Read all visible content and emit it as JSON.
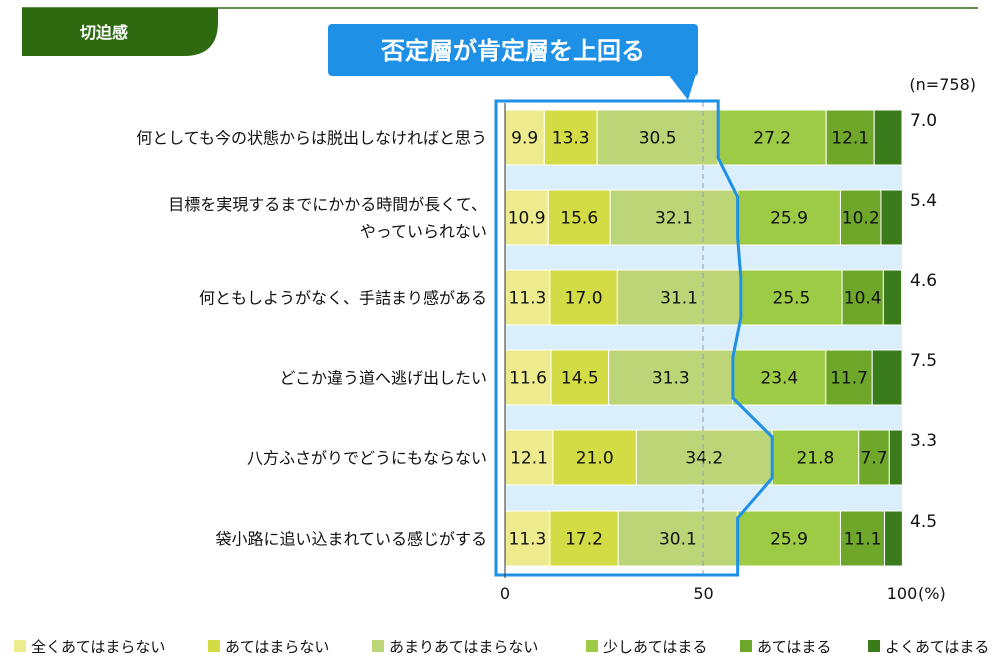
{
  "header": {
    "tab_label": "切迫感",
    "callout": "否定層が肯定層を上回る",
    "sample_size": "(n=758)",
    "unit": "(%)"
  },
  "colors": {
    "tab": "#2e6b10",
    "callout": "#1e90e6",
    "outline": "#1e90e6",
    "band": "#dbeefb",
    "segments": [
      "#eeeb8e",
      "#d3dc45",
      "#bcd577",
      "#9ecb45",
      "#6ea72a",
      "#3a7b1c"
    ]
  },
  "chart_data": {
    "type": "bar",
    "orientation": "horizontal",
    "stacked": true,
    "categories": [
      "何としても今の状態からは脱出しなければと思う",
      "目標を実現するまでにかかる時間が長くて、やっていられない",
      "何ともしようがなく、手詰まり感がある",
      "どこか違う道へ逃げ出したい",
      "八方ふさがりでどうにもならない",
      "袋小路に追い込まれている感じがする"
    ],
    "category_lines": [
      [
        "何としても今の状態からは脱出しなければと思う"
      ],
      [
        "目標を実現するまでにかかる時間が長くて、",
        "やっていられない"
      ],
      [
        "何ともしようがなく、手詰まり感がある"
      ],
      [
        "どこか違う道へ逃げ出したい"
      ],
      [
        "八方ふさがりでどうにもならない"
      ],
      [
        "袋小路に追い込まれている感じがする"
      ]
    ],
    "series": [
      {
        "name": "全くあてはまらない",
        "values": [
          9.9,
          10.9,
          11.3,
          11.6,
          12.1,
          11.3
        ]
      },
      {
        "name": "あてはまらない",
        "values": [
          13.3,
          15.6,
          17.0,
          14.5,
          21.0,
          17.2
        ]
      },
      {
        "name": "あまりあてはまらない",
        "values": [
          30.5,
          32.1,
          31.1,
          31.3,
          34.2,
          30.1
        ]
      },
      {
        "name": "少しあてはまる",
        "values": [
          27.2,
          25.9,
          25.5,
          23.4,
          21.8,
          25.9
        ]
      },
      {
        "name": "あてはまる",
        "values": [
          12.1,
          10.2,
          10.4,
          11.7,
          7.7,
          11.1
        ]
      },
      {
        "name": "よくあてはまる",
        "values": [
          7.0,
          5.4,
          4.6,
          7.5,
          3.3,
          4.5
        ]
      }
    ],
    "xlim": [
      0,
      100
    ],
    "xticks": [
      0,
      50,
      100
    ],
    "legend_position": "bottom"
  }
}
